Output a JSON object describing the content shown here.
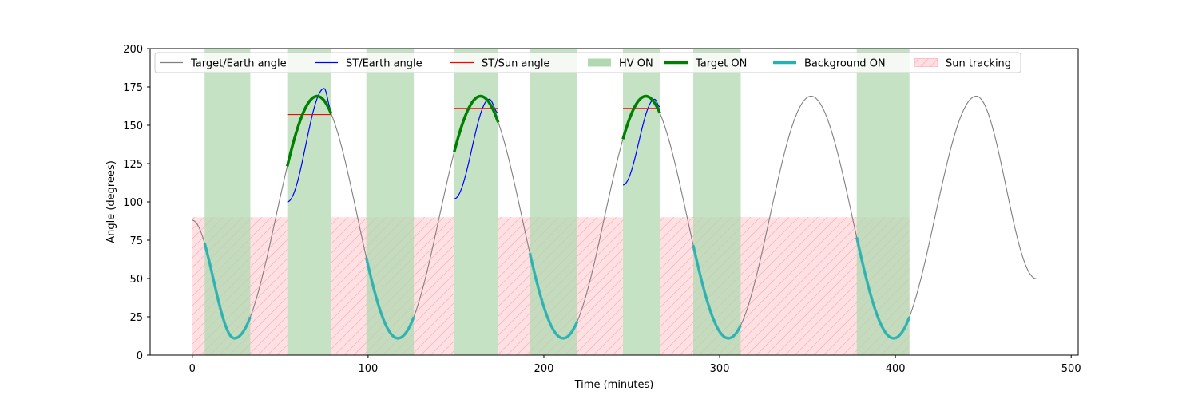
{
  "chart_data": {
    "type": "line",
    "title": "",
    "xlabel": "Time (minutes)",
    "ylabel": "Angle (degrees)",
    "xlim": [
      -24,
      504
    ],
    "ylim": [
      0,
      200
    ],
    "x_ticks": [
      0,
      100,
      200,
      300,
      400,
      500
    ],
    "y_ticks": [
      0,
      25,
      50,
      75,
      100,
      125,
      150,
      175,
      200
    ],
    "grid": false,
    "legend_position": "top-left, single row",
    "hv_on_intervals": [
      [
        7,
        33
      ],
      [
        54,
        79
      ],
      [
        99,
        126
      ],
      [
        149,
        174
      ],
      [
        192,
        219
      ],
      [
        245,
        266
      ],
      [
        285,
        312
      ],
      [
        378,
        408
      ]
    ],
    "sun_tracking": {
      "intervals": [
        [
          0,
          54
        ],
        [
          79,
          149
        ],
        [
          174,
          245
        ],
        [
          266,
          408
        ]
      ],
      "angle": 90
    },
    "target_earth_angle": {
      "x": [
        0,
        24,
        71,
        117,
        164,
        211,
        258,
        305,
        352,
        399,
        446,
        480
      ],
      "y": [
        88,
        11,
        169,
        11,
        169,
        11,
        169,
        11,
        169,
        11,
        169,
        50
      ]
    },
    "st_earth_angle": [
      {
        "x": [
          54,
          75,
          79
        ],
        "y": [
          100,
          174,
          160
        ]
      },
      {
        "x": [
          149,
          169,
          174
        ],
        "y": [
          102,
          167,
          158
        ]
      },
      {
        "x": [
          245,
          263,
          266
        ],
        "y": [
          111,
          167,
          162
        ]
      }
    ],
    "st_sun_angle": [
      {
        "x": [
          54,
          79
        ],
        "y": [
          157,
          157
        ]
      },
      {
        "x": [
          149,
          174
        ],
        "y": [
          161,
          161
        ]
      },
      {
        "x": [
          245,
          266
        ],
        "y": [
          161,
          161
        ]
      }
    ],
    "target_on_intervals": [
      [
        54,
        79
      ],
      [
        149,
        174
      ],
      [
        245,
        266
      ]
    ],
    "background_on_intervals": [
      [
        7,
        33
      ],
      [
        99,
        126
      ],
      [
        192,
        219
      ],
      [
        285,
        312
      ],
      [
        378,
        408
      ]
    ],
    "colors": {
      "target_earth": "#808080",
      "st_earth": "#0000ff",
      "st_sun": "#ff0000",
      "hv_on": "#b2d8b2",
      "target_on": "#008000",
      "background_on": "#1fb3b3",
      "sun_tracking_fill": "#ffdfe3",
      "sun_tracking_hatch": "#ffb3bd"
    },
    "legend": [
      {
        "key": "target_earth",
        "label": "Target/Earth angle",
        "style": "line"
      },
      {
        "key": "st_earth",
        "label": "ST/Earth angle",
        "style": "line"
      },
      {
        "key": "st_sun",
        "label": "ST/Sun angle",
        "style": "line"
      },
      {
        "key": "hv_on",
        "label": "HV ON",
        "style": "patch"
      },
      {
        "key": "target_on",
        "label": "Target ON",
        "style": "thick"
      },
      {
        "key": "background_on",
        "label": "Background ON",
        "style": "thick"
      },
      {
        "key": "sun_tracking",
        "label": "Sun tracking",
        "style": "hatch"
      }
    ]
  }
}
